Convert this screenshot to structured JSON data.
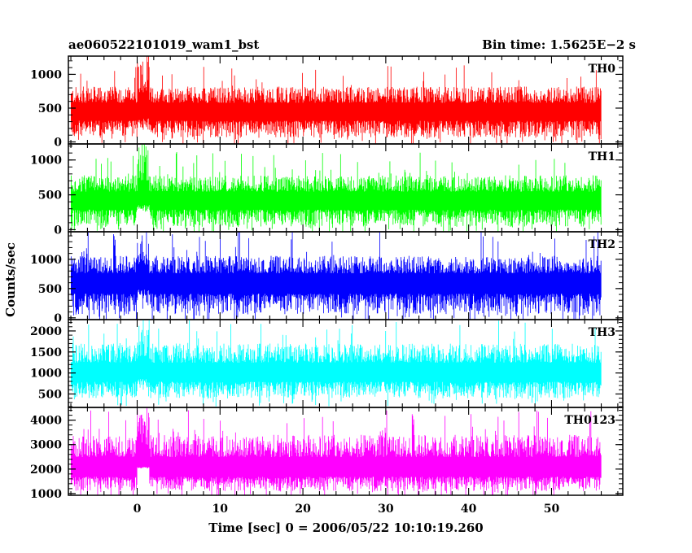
{
  "chart_data": {
    "type": "line",
    "title": "ae060522101019_wam1_bst",
    "subtitle": "Bin time: 1.5625E−2 s",
    "xlabel": "Time [sec] 0 = 2006/05/22 10:10:19.260",
    "ylabel": "Counts/sec",
    "xlim": [
      -8.3,
      58.6
    ],
    "x_ticks": [
      0,
      10,
      20,
      30,
      40,
      50
    ],
    "x_range_data": [
      -8,
      56
    ],
    "grid": false,
    "panels": [
      {
        "name": "TH0",
        "color": "#ff0000",
        "ylim": [
          -30,
          1270
        ],
        "y_ticks": [
          0,
          500,
          1000
        ],
        "baseline": 450,
        "low": 60,
        "high": 820,
        "burst": {
          "x": [
            0,
            1.5
          ],
          "low": 180,
          "high": 1260
        }
      },
      {
        "name": "TH1",
        "color": "#00ff00",
        "ylim": [
          -30,
          1230
        ],
        "y_ticks": [
          0,
          500,
          1000
        ],
        "baseline": 420,
        "low": 40,
        "high": 780,
        "burst": {
          "x": [
            0,
            1.5
          ],
          "low": 260,
          "high": 1230
        }
      },
      {
        "name": "TH2",
        "color": "#0000ff",
        "ylim": [
          -30,
          1470
        ],
        "y_ticks": [
          0,
          500,
          1000
        ],
        "baseline": 600,
        "low": 60,
        "high": 1060,
        "burst": {
          "x": [
            0,
            1.5
          ],
          "low": 260,
          "high": 1470
        }
      },
      {
        "name": "TH3",
        "color": "#00ffff",
        "ylim": [
          180,
          2270
        ],
        "y_ticks": [
          500,
          1000,
          1500,
          2000
        ],
        "baseline": 1000,
        "low": 400,
        "high": 1700,
        "burst": {
          "x": [
            0,
            1.5
          ],
          "low": 600,
          "high": 2150
        }
      },
      {
        "name": "TH0123",
        "color": "#ff00ff",
        "ylim": [
          930,
          4520
        ],
        "y_ticks": [
          1000,
          2000,
          3000,
          4000
        ],
        "baseline": 2000,
        "low": 1100,
        "high": 3400,
        "burst": {
          "x": [
            0,
            1.5
          ],
          "low": 2100,
          "high": 4500
        }
      }
    ]
  }
}
